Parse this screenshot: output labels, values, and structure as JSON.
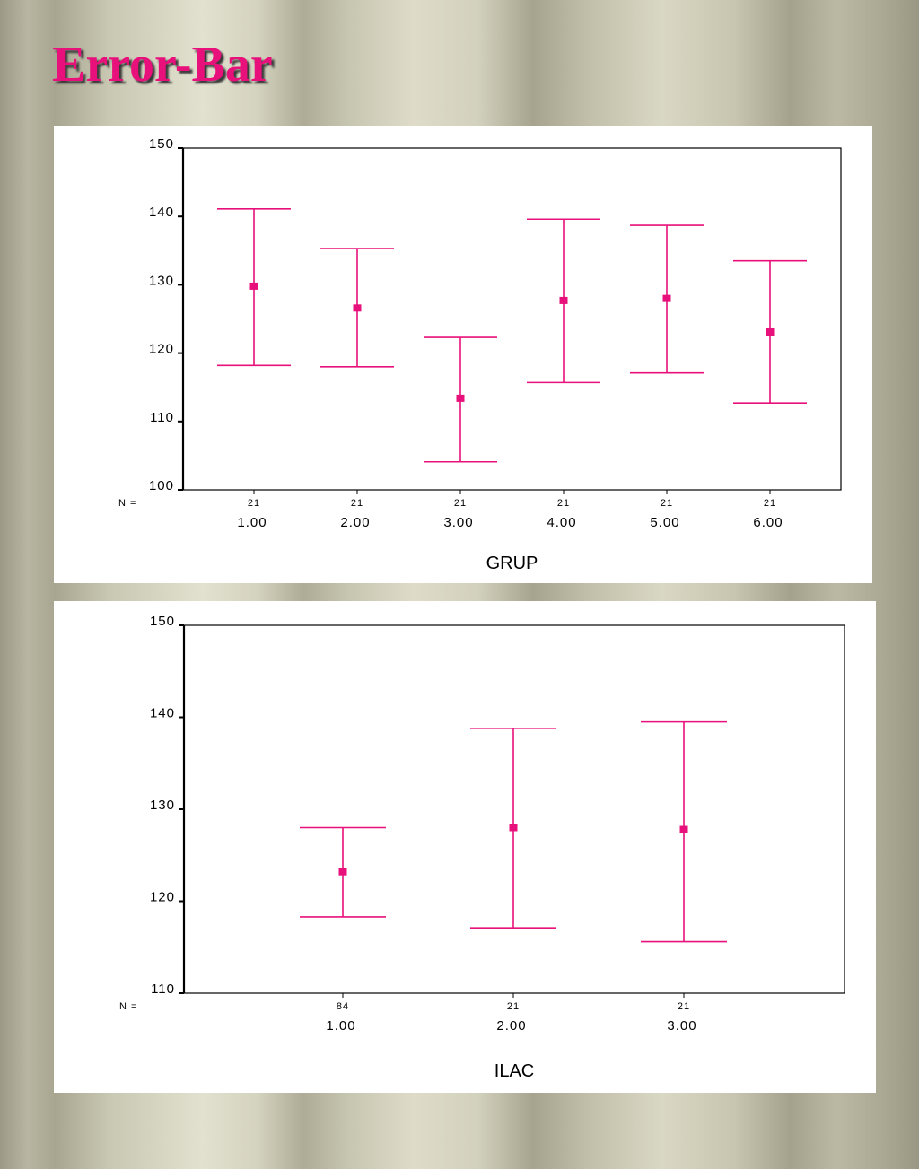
{
  "slide": {
    "title": "Error-Bar"
  },
  "colors": {
    "accent": "#e8107a",
    "errorbar": "#e8107a",
    "axis": "#000000"
  },
  "chart_data": [
    {
      "type": "errorbar",
      "xlabel": "GRUP",
      "ylabel": "",
      "ylim": [
        100,
        150
      ],
      "yticks": [
        100,
        110,
        120,
        130,
        140,
        150
      ],
      "n_label": "N =",
      "grid": false,
      "categories": [
        "1.00",
        "2.00",
        "3.00",
        "4.00",
        "5.00",
        "6.00"
      ],
      "n": [
        "21",
        "21",
        "21",
        "21",
        "21",
        "21"
      ],
      "mean": [
        129.8,
        126.6,
        113.4,
        127.7,
        128.0,
        123.1
      ],
      "lower": [
        118.2,
        118.0,
        104.1,
        115.7,
        117.1,
        112.7
      ],
      "upper": [
        141.1,
        135.3,
        122.3,
        139.6,
        138.7,
        133.5
      ]
    },
    {
      "type": "errorbar",
      "xlabel": "ILAC",
      "ylabel": "",
      "ylim": [
        110,
        150
      ],
      "yticks": [
        110,
        120,
        130,
        140,
        150
      ],
      "n_label": "N =",
      "grid": false,
      "categories": [
        "1.00",
        "2.00",
        "3.00"
      ],
      "n": [
        "84",
        "21",
        "21"
      ],
      "mean": [
        123.2,
        128.0,
        127.8
      ],
      "lower": [
        118.3,
        117.1,
        115.6
      ],
      "upper": [
        128.0,
        138.8,
        139.5
      ]
    }
  ]
}
